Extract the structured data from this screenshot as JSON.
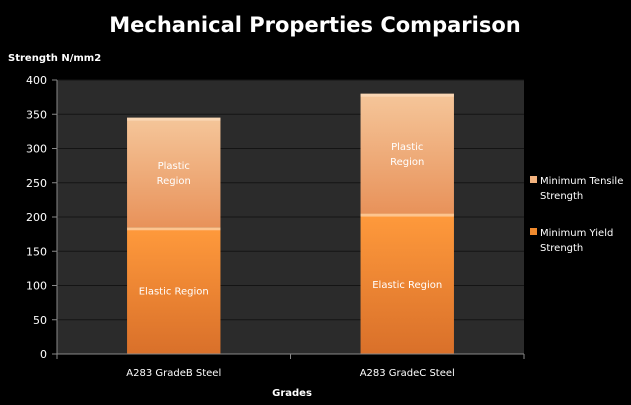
{
  "chart_data": {
    "type": "bar",
    "stacked": true,
    "title": "Mechanical Properties Comparison",
    "ylabel": "Strength N/mm2",
    "xlabel": "Grades",
    "categories": [
      "A283 GradeB Steel",
      "A283 GradeC Steel"
    ],
    "ylim": [
      0,
      400
    ],
    "yticks": [
      0,
      50,
      100,
      150,
      200,
      250,
      300,
      350,
      400
    ],
    "grid": true,
    "legend_position": "right",
    "series": [
      {
        "name": "Minimum Yield Strength",
        "values": [
          185,
          205
        ],
        "segment_label": [
          "Elastic Region"
        ],
        "color_top": "#ff9a3c",
        "color_bottom": "#d9702a",
        "legend_swatch": "#f08a2e"
      },
      {
        "name": "Minimum Tensile Strength",
        "values": [
          160,
          175
        ],
        "segment_label": [
          "Plastic",
          "Region"
        ],
        "color_top": "#f5c69a",
        "color_bottom": "#e8925a",
        "legend_swatch": "#f2b27e"
      }
    ],
    "colors": {
      "background": "#000000",
      "plot_area": "#2b2b2b",
      "gridline": "#141414",
      "text": "#ffffff"
    }
  }
}
